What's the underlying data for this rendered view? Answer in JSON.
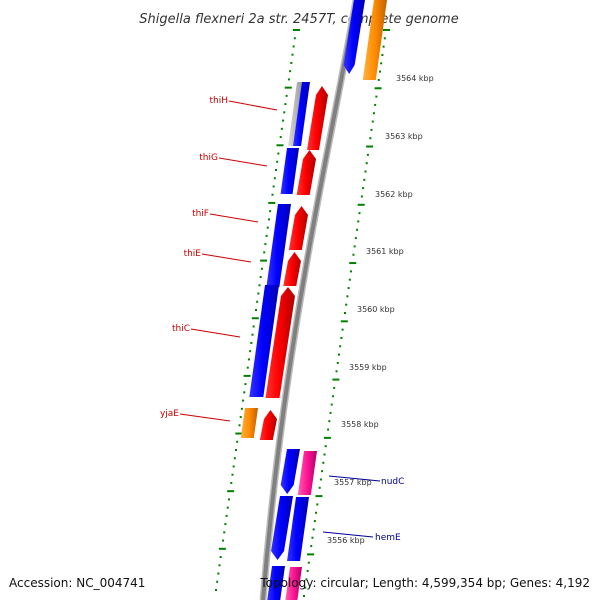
{
  "title": "Shigella flexneri 2a str. 2457T, complete genome",
  "footer": {
    "accession": "Accession: NC_004741",
    "topology": "Topology: circular; Length: 4,599,354 bp; Genes: 4,192"
  },
  "colors": {
    "blue": "#0000ff",
    "red": "#ff0000",
    "orange": "#ff8c00",
    "magenta": "#ff1493",
    "grey": "#aaaaaa",
    "backbone": "#808080",
    "ruler": "#008000",
    "label_left": "#cc0000",
    "label_right": "#000099"
  },
  "kbp_ticks": [
    "3564 kbp",
    "3563 kbp",
    "3562 kbp",
    "3561 kbp",
    "3560 kbp",
    "3559 kbp",
    "3558 kbp",
    "3557 kbp",
    "3556 kbp"
  ],
  "gene_labels_left": [
    "thiH",
    "thiG",
    "thiF",
    "thiE",
    "thiC",
    "yjaE"
  ],
  "gene_labels_right": [
    "nudC",
    "hemE"
  ]
}
